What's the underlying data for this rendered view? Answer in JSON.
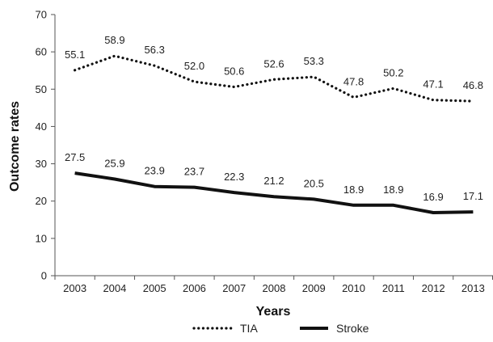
{
  "chart_data": {
    "type": "line",
    "xlabel": "Years",
    "ylabel": "Outcome rates",
    "ylim": [
      0,
      70
    ],
    "yticks": [
      "0",
      "10",
      "20",
      "30",
      "40",
      "50",
      "60",
      "70"
    ],
    "categories": [
      "2003",
      "2004",
      "2005",
      "2006",
      "2007",
      "2008",
      "2009",
      "2010",
      "2011",
      "2012",
      "2013"
    ],
    "grid": false,
    "legend_position": "bottom",
    "series": [
      {
        "name": "TIA",
        "style": "dotted",
        "color": "#111111",
        "values": [
          55.1,
          58.9,
          56.3,
          52.0,
          50.6,
          52.6,
          53.3,
          47.8,
          50.2,
          47.1,
          46.8
        ],
        "labels": [
          "55.1",
          "58.9",
          "56.3",
          "52.0",
          "50.6",
          "52.6",
          "53.3",
          "47.8",
          "50.2",
          "47.1",
          "46.8"
        ]
      },
      {
        "name": "Stroke",
        "style": "solid",
        "color": "#111111",
        "values": [
          27.5,
          25.9,
          23.9,
          23.7,
          22.3,
          21.2,
          20.5,
          18.9,
          18.9,
          16.9,
          17.1
        ],
        "labels": [
          "27.5",
          "25.9",
          "23.9",
          "23.7",
          "22.3",
          "21.2",
          "20.5",
          "18.9",
          "18.9",
          "16.9",
          "17.1"
        ]
      }
    ]
  }
}
